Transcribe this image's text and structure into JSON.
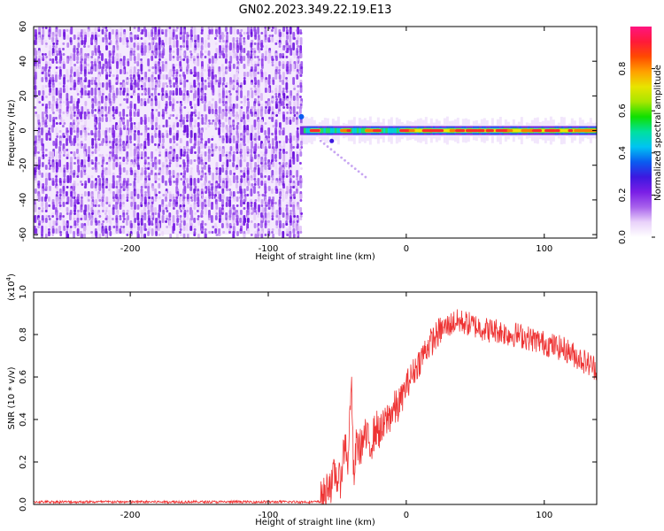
{
  "figure_title": "GN02.2023.349.22.19.E13",
  "chart_data": [
    {
      "type": "heatmap",
      "title": "GN02.2023.349.22.19.E13",
      "xlabel": "Height of straight line (km)",
      "ylabel": "Frequency (Hz)",
      "xlim": [
        -270,
        138
      ],
      "ylim": [
        -62,
        60
      ],
      "x_ticks": [
        -200,
        -100,
        0,
        100
      ],
      "x_tick_labels": [
        "-200",
        "-100",
        "0",
        "100"
      ],
      "y_ticks": [
        -60,
        -40,
        -20,
        0,
        20,
        40,
        60
      ],
      "y_tick_labels": [
        "-60",
        "-40",
        "-20",
        "0",
        "20",
        "40",
        "60"
      ],
      "colorbar": {
        "label": "Normalized spectral amplitude",
        "range": [
          0,
          1
        ],
        "ticks": [
          0.0,
          0.2,
          0.4,
          0.6,
          0.8
        ],
        "tick_labels": [
          "0.0",
          "0.2",
          "0.4",
          "0.6",
          "0.8"
        ],
        "colors": [
          "#ffffff",
          "#e9d2fa",
          "#a862ec",
          "#7a1ee6",
          "#3d18e0",
          "#0a5cf0",
          "#00c4f2",
          "#00e0a0",
          "#10e000",
          "#a8e600",
          "#e8e400",
          "#ffa000",
          "#ff4a00",
          "#ff1a3a",
          "#ff1480"
        ]
      },
      "noise_region": {
        "x_range": [
          -270,
          -77
        ],
        "freq_range": [
          -60,
          60
        ]
      },
      "signal_band": {
        "x_range": [
          -77,
          138
        ],
        "center_freq_hz": 0,
        "strong_segments_x": [
          [
            -70,
            -62
          ],
          [
            -48,
            -40
          ],
          [
            -30,
            -18
          ],
          [
            -5,
            138
          ]
        ]
      }
    },
    {
      "type": "line",
      "xlabel": "Height of straight line (km)",
      "ylabel": "SNR (10 * v/v)",
      "y_scale_label": "(x10",
      "y_scale_exponent": "4",
      "y_scale_suffix": ")",
      "xlim": [
        -270,
        138
      ],
      "ylim": [
        0,
        1.0
      ],
      "x_ticks": [
        -200,
        -100,
        0,
        100
      ],
      "x_tick_labels": [
        "-200",
        "-100",
        "0",
        "100"
      ],
      "y_ticks": [
        0.0,
        0.2,
        0.4,
        0.6,
        0.8,
        1.0
      ],
      "y_tick_labels": [
        "0.0",
        "0.2",
        "0.4",
        "0.6",
        "0.8",
        "1.0"
      ],
      "series": [
        {
          "color": "#ee3333",
          "x": [
            -270,
            -250,
            -200,
            -150,
            -100,
            -70,
            -62,
            -58,
            -56,
            -54,
            -52,
            -48,
            -46,
            -44,
            -42,
            -40,
            -38,
            -36,
            -34,
            -30,
            -26,
            -22,
            -18,
            -14,
            -10,
            -6,
            -2,
            0,
            5,
            10,
            15,
            20,
            25,
            30,
            35,
            40,
            45,
            50,
            55,
            60,
            65,
            70,
            75,
            80,
            85,
            90,
            95,
            100,
            105,
            110,
            115,
            120,
            125,
            130,
            138
          ],
          "y": [
            0.01,
            0.01,
            0.01,
            0.01,
            0.01,
            0.01,
            0.02,
            0.06,
            0.12,
            0.08,
            0.15,
            0.1,
            0.22,
            0.3,
            0.18,
            0.62,
            0.1,
            0.3,
            0.26,
            0.32,
            0.28,
            0.36,
            0.34,
            0.4,
            0.44,
            0.46,
            0.52,
            0.56,
            0.62,
            0.68,
            0.74,
            0.78,
            0.82,
            0.84,
            0.86,
            0.86,
            0.85,
            0.84,
            0.83,
            0.82,
            0.82,
            0.81,
            0.8,
            0.8,
            0.79,
            0.78,
            0.77,
            0.76,
            0.75,
            0.74,
            0.73,
            0.71,
            0.69,
            0.67,
            0.64
          ]
        }
      ]
    }
  ]
}
